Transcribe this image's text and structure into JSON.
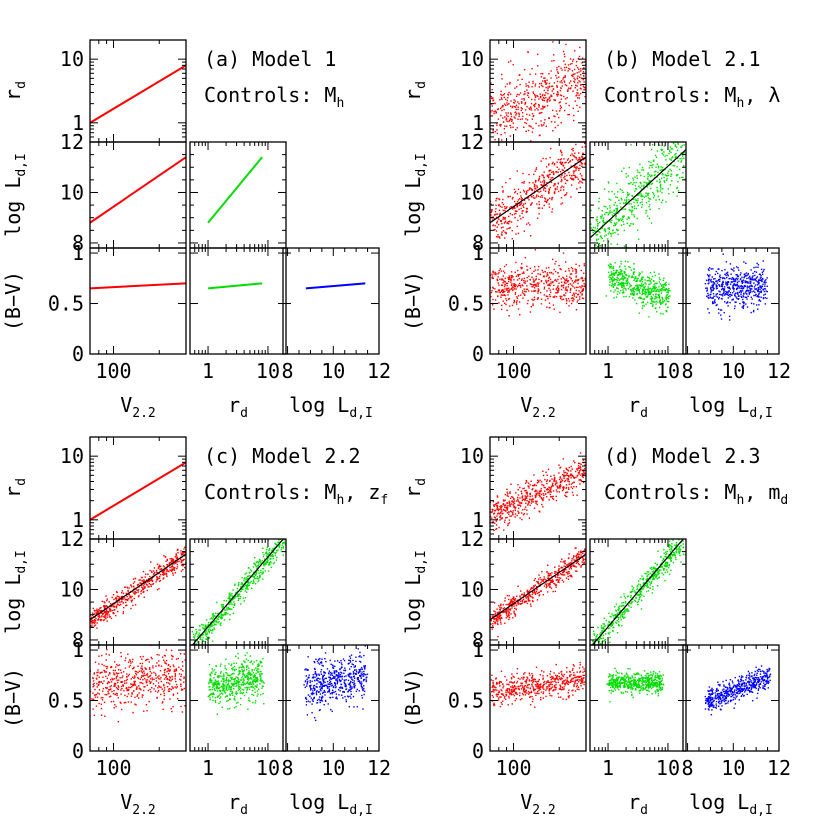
{
  "colors": {
    "v": "#ff0000",
    "r": "#00dd00",
    "l": "#0000ff",
    "fit": "#000000"
  },
  "chart_data": [
    {
      "type": "scatter",
      "panel": "a",
      "title": "(a) Model 1",
      "controls_prefix": "Controls: ",
      "controls_main": "M",
      "controls_sub": "h",
      "controls_tail": "",
      "controls2_main": "",
      "controls2_sub": "",
      "scatter": [
        0,
        0,
        0,
        0,
        0,
        0
      ],
      "fit_lines": false,
      "relations": {
        "rd_vs_v": {
          "from": [
            70,
            1.0
          ],
          "to": [
            300,
            8.0
          ]
        },
        "logL_vs_v": {
          "from": [
            70,
            8.8
          ],
          "to": [
            300,
            11.4
          ]
        },
        "logL_vs_rd": {
          "from": [
            1.0,
            8.8
          ],
          "to": [
            8.0,
            11.4
          ]
        },
        "bv_vs_v": {
          "from": [
            70,
            0.65
          ],
          "to": [
            300,
            0.7
          ]
        },
        "bv_vs_rd": {
          "from": [
            1.0,
            0.65
          ],
          "to": [
            8.0,
            0.7
          ]
        },
        "bv_vs_logL": {
          "from": [
            8.8,
            0.65
          ],
          "to": [
            11.4,
            0.7
          ]
        }
      }
    },
    {
      "type": "scatter",
      "panel": "b",
      "title": "(b) Model 2.1",
      "controls_prefix": "Controls: ",
      "controls_main": "M",
      "controls_sub": "h",
      "controls_tail": ",",
      "controls2_main": "λ",
      "controls2_sub": "",
      "scatter": [
        1.0,
        0.5,
        0.6,
        0.1,
        0.08,
        0.1
      ],
      "fit_lines": true,
      "relations": {
        "rd_vs_v": {
          "from": [
            70,
            1.3
          ],
          "to": [
            300,
            5.0
          ]
        },
        "logL_vs_v": {
          "from": [
            70,
            8.8
          ],
          "to": [
            300,
            11.4
          ]
        },
        "logL_vs_rd": {
          "from": [
            0.5,
            8.2
          ],
          "to": [
            18,
            11.6
          ]
        },
        "bv_vs_v": {
          "from": [
            70,
            0.66
          ],
          "to": [
            300,
            0.7
          ]
        },
        "bv_vs_rd": {
          "from": [
            1.0,
            0.78
          ],
          "to": [
            10,
            0.56
          ]
        },
        "bv_vs_logL": {
          "from": [
            8.8,
            0.66
          ],
          "to": [
            11.4,
            0.68
          ]
        }
      }
    },
    {
      "type": "scatter",
      "panel": "c",
      "title": "(c) Model 2.2",
      "controls_prefix": "Controls: ",
      "controls_main": "M",
      "controls_sub": "h",
      "controls_tail": ",",
      "controls2_main": "z",
      "controls2_sub": "f",
      "scatter": [
        0,
        0.22,
        0.25,
        0.12,
        0.1,
        0.12
      ],
      "fit_lines": true,
      "relations": {
        "rd_vs_v": {
          "from": [
            70,
            1.0
          ],
          "to": [
            300,
            8.0
          ]
        },
        "logL_vs_v": {
          "from": [
            70,
            8.8
          ],
          "to": [
            300,
            11.4
          ]
        },
        "logL_vs_rd": {
          "from": [
            0.55,
            7.8
          ],
          "to": [
            18,
            12.0
          ]
        },
        "bv_vs_v": {
          "from": [
            70,
            0.66
          ],
          "to": [
            300,
            0.76
          ]
        },
        "bv_vs_rd": {
          "from": [
            1.0,
            0.64
          ],
          "to": [
            8.0,
            0.74
          ]
        },
        "bv_vs_logL": {
          "from": [
            8.8,
            0.65
          ],
          "to": [
            11.4,
            0.76
          ]
        }
      }
    },
    {
      "type": "scatter",
      "panel": "d",
      "title": "(d) Model 2.3",
      "controls_prefix": "Controls: ",
      "controls_main": "M",
      "controls_sub": "h",
      "controls_tail": ",",
      "controls2_main": "m",
      "controls2_sub": "d",
      "scatter": [
        0.45,
        0.22,
        0.25,
        0.07,
        0.05,
        0.06
      ],
      "fit_lines": true,
      "relations": {
        "rd_vs_v": {
          "from": [
            70,
            1.2
          ],
          "to": [
            300,
            6.0
          ]
        },
        "logL_vs_v": {
          "from": [
            70,
            8.8
          ],
          "to": [
            300,
            11.4
          ]
        },
        "logL_vs_rd": {
          "from": [
            0.55,
            7.8
          ],
          "to": [
            18,
            12.0
          ]
        },
        "bv_vs_v": {
          "from": [
            70,
            0.6
          ],
          "to": [
            300,
            0.72
          ]
        },
        "bv_vs_rd": {
          "from": [
            1.0,
            0.68
          ],
          "to": [
            8.0,
            0.68
          ]
        },
        "bv_vs_logL": {
          "from": [
            8.8,
            0.5
          ],
          "to": [
            11.6,
            0.75
          ]
        }
      }
    }
  ],
  "axes": {
    "x_v": {
      "range": [
        70,
        300
      ],
      "scale": "log",
      "ticks": [
        100
      ],
      "label_main": "V",
      "label_sub": "2.2"
    },
    "x_rd": {
      "range": [
        0.5,
        20
      ],
      "scale": "log",
      "ticks": [
        1,
        10
      ],
      "label_main": "r",
      "label_sub": "d"
    },
    "x_logL": {
      "range": [
        7.8,
        12.0
      ],
      "scale": "linear",
      "ticks": [
        8,
        10,
        12
      ],
      "label_main": "log L",
      "label_sub": "d,I"
    },
    "y_rd": {
      "range": [
        0.5,
        20
      ],
      "scale": "log",
      "ticks": [
        1,
        10
      ],
      "label_main": "r",
      "label_sub": "d"
    },
    "y_logL": {
      "range": [
        7.8,
        12.0
      ],
      "scale": "linear",
      "ticks": [
        8,
        10,
        12
      ],
      "label_main": "log L",
      "label_sub": "d,I"
    },
    "y_bv": {
      "range": [
        0,
        1.05
      ],
      "scale": "linear",
      "ticks": [
        0,
        0.5,
        1
      ],
      "tick_labels": [
        "0",
        "0.5",
        "1"
      ],
      "label_main": "(B−V)",
      "label_sub": ""
    }
  }
}
